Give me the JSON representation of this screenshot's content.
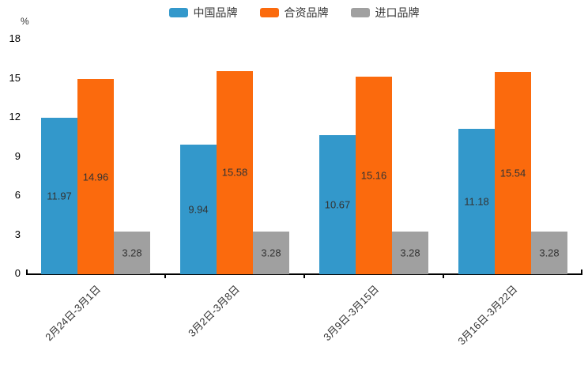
{
  "chart_data": {
    "type": "bar",
    "title": "",
    "xlabel": "",
    "ylabel": "%",
    "ylim": [
      0,
      18
    ],
    "yticks": [
      0,
      3,
      6,
      9,
      12,
      15,
      18
    ],
    "grid": false,
    "legend_position": "top",
    "value_labels": true,
    "value_label_decimals": 2,
    "categories": [
      "2月24日-3月1日",
      "3月2日-3月8日",
      "3月9日-3月15日",
      "3月16日-3月22日"
    ],
    "series": [
      {
        "name": "中国品牌",
        "color": "#3398cb",
        "values": [
          11.97,
          9.94,
          10.67,
          11.18
        ]
      },
      {
        "name": "合资品牌",
        "color": "#fb6a0d",
        "values": [
          14.96,
          15.58,
          15.16,
          15.54
        ]
      },
      {
        "name": "进口品牌",
        "color": "#a0a0a0",
        "values": [
          3.28,
          3.28,
          3.28,
          3.28
        ]
      }
    ]
  }
}
